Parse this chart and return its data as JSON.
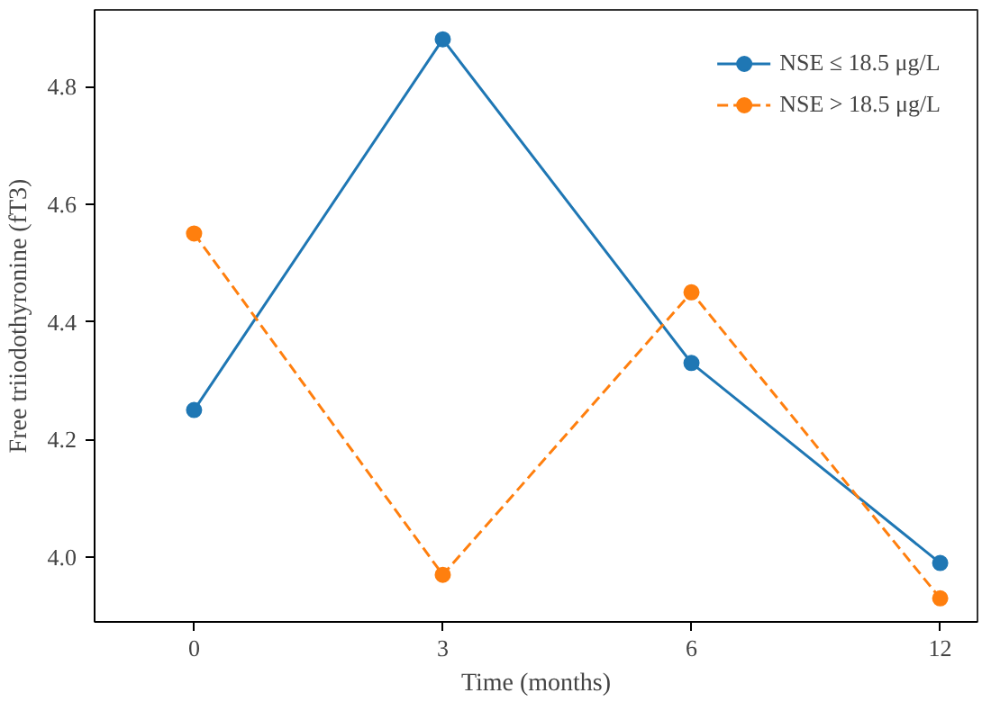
{
  "chart_data": {
    "type": "line",
    "xlabel": "Time (months)",
    "ylabel": "Free triiodothyronine (fT3)",
    "categories": [
      "0",
      "3",
      "6",
      "12"
    ],
    "series": [
      {
        "name": "NSE ≤ 18.5 μg/L",
        "color": "#1f77b4",
        "values": [
          4.25,
          4.88,
          4.33,
          3.99
        ],
        "line_style": "solid"
      },
      {
        "name": "NSE > 18.5 μg/L",
        "color": "#ff7f0e",
        "values": [
          4.55,
          3.97,
          4.45,
          3.93
        ],
        "line_style": "dashed"
      }
    ],
    "ylim": [
      3.89,
      4.93
    ],
    "yticks": [
      {
        "value": 4,
        "label": "4.0"
      },
      4.2,
      4.4,
      4.6,
      4.8
    ],
    "marker": "circle",
    "legend": "top right",
    "grid": false
  }
}
